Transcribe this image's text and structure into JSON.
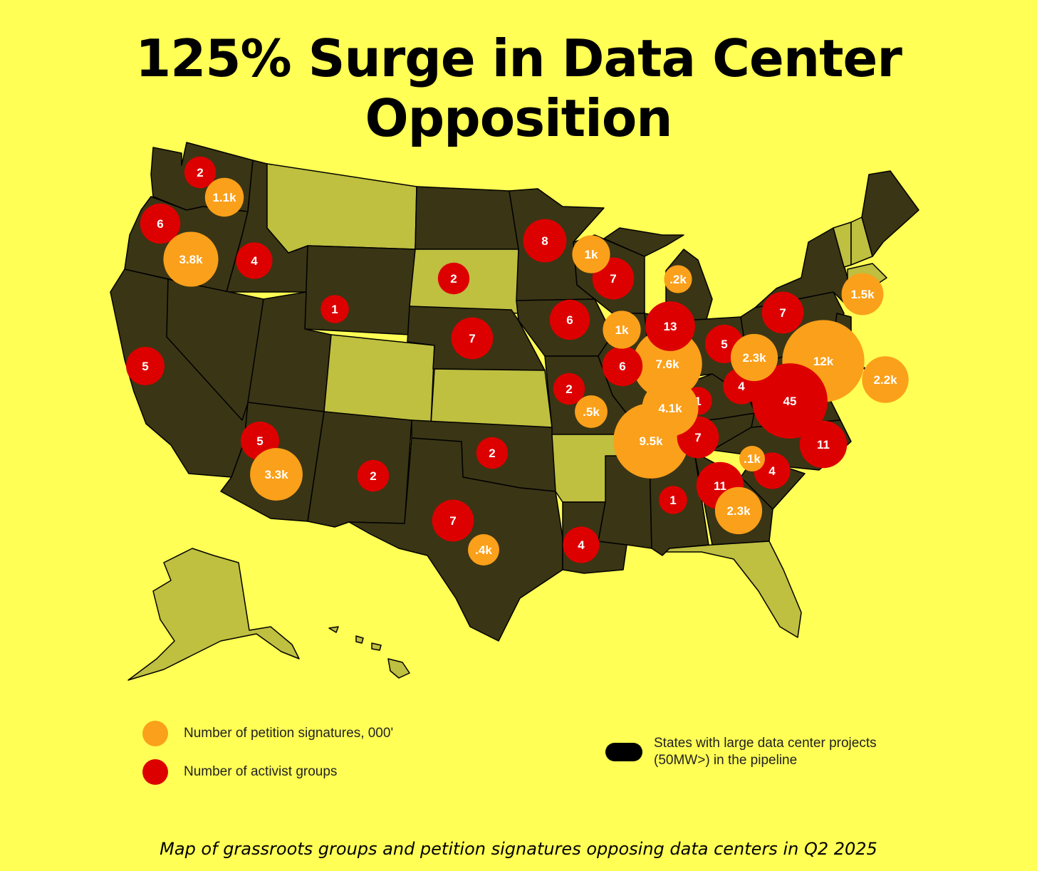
{
  "title": "125% Surge in Data Center Opposition",
  "caption": "Map of grassroots groups and petition signatures opposing data centers in Q2 2025",
  "colors": {
    "background": "#ffff55",
    "state_pipeline": "#3a3515",
    "state_other": "#bfbf40",
    "signatures": "#fba01a",
    "groups": "#dd0000"
  },
  "legend": {
    "signatures_label": "Number of petition signatures, 000'",
    "groups_label": "Number of activist groups",
    "pipeline_label_line1": "States with large data center projects",
    "pipeline_label_line2": "(50MW>) in the pipeline"
  },
  "map_data": {
    "groups": [
      {
        "state": "WA",
        "label": "2",
        "value": 2
      },
      {
        "state": "OR",
        "label": "6",
        "value": 6
      },
      {
        "state": "ID",
        "label": "4",
        "value": 4
      },
      {
        "state": "CA",
        "label": "5",
        "value": 5
      },
      {
        "state": "WY",
        "label": "1",
        "value": 1
      },
      {
        "state": "SD",
        "label": "2",
        "value": 2
      },
      {
        "state": "MN",
        "label": "8",
        "value": 8
      },
      {
        "state": "WI",
        "label": "7",
        "value": 7
      },
      {
        "state": "NE",
        "label": "7",
        "value": 7
      },
      {
        "state": "IA",
        "label": "6",
        "value": 6
      },
      {
        "state": "IL",
        "label": "6",
        "value": 6
      },
      {
        "state": "IN",
        "label": "13",
        "value": 13
      },
      {
        "state": "OH",
        "label": "5",
        "value": 5
      },
      {
        "state": "PA",
        "label": "7",
        "value": 7
      },
      {
        "state": "MO",
        "label": "2",
        "value": 2
      },
      {
        "state": "AZ",
        "label": "5",
        "value": 5
      },
      {
        "state": "NM",
        "label": "2",
        "value": 2
      },
      {
        "state": "OK",
        "label": "2",
        "value": 2
      },
      {
        "state": "TX",
        "label": "7",
        "value": 7
      },
      {
        "state": "LA",
        "label": "4",
        "value": 4
      },
      {
        "state": "AL",
        "label": "1",
        "value": 1
      },
      {
        "state": "GA",
        "label": "11",
        "value": 11
      },
      {
        "state": "SC",
        "label": "4",
        "value": 4
      },
      {
        "state": "NC",
        "label": "11",
        "value": 11
      },
      {
        "state": "VA",
        "label": "45",
        "value": 45
      },
      {
        "state": "WV",
        "label": "4",
        "value": 4
      },
      {
        "state": "KY",
        "label": "1",
        "value": 1
      },
      {
        "state": "TN",
        "label": "7",
        "value": 7
      }
    ],
    "signatures": [
      {
        "state": "WA",
        "label": "1.1k",
        "value": 1.1
      },
      {
        "state": "OR",
        "label": "3.8k",
        "value": 3.8
      },
      {
        "state": "WI",
        "label": "1k",
        "value": 1
      },
      {
        "state": "MI",
        "label": ".2k",
        "value": 0.2
      },
      {
        "state": "IL",
        "label": "1k",
        "value": 1
      },
      {
        "state": "IN",
        "label": "7.6k",
        "value": 7.6
      },
      {
        "state": "MO",
        "label": ".5k",
        "value": 0.5
      },
      {
        "state": "KY",
        "label": "4.1k",
        "value": 4.1
      },
      {
        "state": "TN",
        "label": "9.5k",
        "value": 9.5
      },
      {
        "state": "OH",
        "label": "2.3k",
        "value": 2.3
      },
      {
        "state": "PA",
        "label": "12k",
        "value": 12
      },
      {
        "state": "NJ",
        "label": "2.2k",
        "value": 2.2
      },
      {
        "state": "CT",
        "label": "1.5k",
        "value": 1.5
      },
      {
        "state": "SC",
        "label": ".1k",
        "value": 0.1
      },
      {
        "state": "GA",
        "label": "2.3k",
        "value": 2.3
      },
      {
        "state": "AZ",
        "label": "3.3k",
        "value": 3.3
      },
      {
        "state": "TX",
        "label": ".4k",
        "value": 0.4
      }
    ]
  }
}
